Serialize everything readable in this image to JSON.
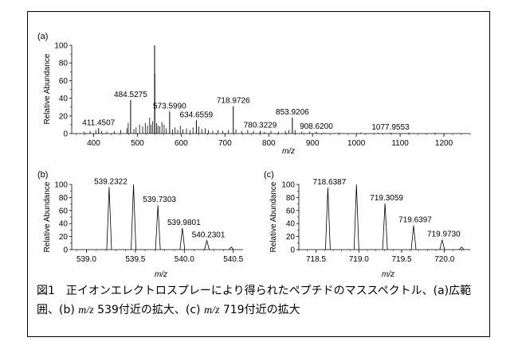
{
  "chart_data": [
    {
      "type": "line",
      "panel_label": "(a)",
      "ylabel": "Relative Abundance",
      "xlabel": "m/z",
      "xlim": [
        350,
        1260
      ],
      "ylim": [
        0,
        100
      ],
      "x_ticks": [
        400,
        500,
        600,
        700,
        800,
        900,
        1000,
        1100,
        1200
      ],
      "y_ticks": [
        0,
        20,
        40,
        60,
        80,
        100
      ],
      "peaks": [
        {
          "x": 411.4507,
          "y": 6,
          "label": "411.4507"
        },
        {
          "x": 484.5275,
          "y": 38,
          "label": "484.5275"
        },
        {
          "x": 539.2322,
          "y": 100,
          "label": ""
        },
        {
          "x": 539.7303,
          "y": 68,
          "label": ""
        },
        {
          "x": 573.599,
          "y": 25,
          "label": "573.5990"
        },
        {
          "x": 634.6559,
          "y": 15,
          "label": "634.6559"
        },
        {
          "x": 718.9726,
          "y": 31,
          "label": "718.9726"
        },
        {
          "x": 780.3229,
          "y": 3,
          "label": "780.3229"
        },
        {
          "x": 853.9206,
          "y": 18,
          "label": "853.9206"
        },
        {
          "x": 908.62,
          "y": 2,
          "label": "908.6200"
        },
        {
          "x": 1077.9553,
          "y": 1,
          "label": "1077.9553"
        }
      ],
      "minor_peaks": [
        {
          "x": 378,
          "y": 2
        },
        {
          "x": 392,
          "y": 3
        },
        {
          "x": 405,
          "y": 4
        },
        {
          "x": 418,
          "y": 3
        },
        {
          "x": 430,
          "y": 2
        },
        {
          "x": 447,
          "y": 3
        },
        {
          "x": 462,
          "y": 4
        },
        {
          "x": 476,
          "y": 6
        },
        {
          "x": 479,
          "y": 12
        },
        {
          "x": 492,
          "y": 5
        },
        {
          "x": 497,
          "y": 7
        },
        {
          "x": 505,
          "y": 10
        },
        {
          "x": 512,
          "y": 8
        },
        {
          "x": 518,
          "y": 12
        },
        {
          "x": 523,
          "y": 9
        },
        {
          "x": 528,
          "y": 18
        },
        {
          "x": 531,
          "y": 10
        },
        {
          "x": 535,
          "y": 14
        },
        {
          "x": 544,
          "y": 12
        },
        {
          "x": 547,
          "y": 9
        },
        {
          "x": 551,
          "y": 8
        },
        {
          "x": 556,
          "y": 13
        },
        {
          "x": 561,
          "y": 10
        },
        {
          "x": 566,
          "y": 6
        },
        {
          "x": 580,
          "y": 5
        },
        {
          "x": 586,
          "y": 7
        },
        {
          "x": 592,
          "y": 4
        },
        {
          "x": 598,
          "y": 9
        },
        {
          "x": 604,
          "y": 5
        },
        {
          "x": 612,
          "y": 6
        },
        {
          "x": 620,
          "y": 4
        },
        {
          "x": 627,
          "y": 7
        },
        {
          "x": 640,
          "y": 8
        },
        {
          "x": 647,
          "y": 5
        },
        {
          "x": 655,
          "y": 6
        },
        {
          "x": 662,
          "y": 4
        },
        {
          "x": 672,
          "y": 3
        },
        {
          "x": 684,
          "y": 4
        },
        {
          "x": 695,
          "y": 3
        },
        {
          "x": 708,
          "y": 4
        },
        {
          "x": 725,
          "y": 5
        },
        {
          "x": 738,
          "y": 3
        },
        {
          "x": 752,
          "y": 4
        },
        {
          "x": 765,
          "y": 3
        },
        {
          "x": 790,
          "y": 2
        },
        {
          "x": 805,
          "y": 3
        },
        {
          "x": 822,
          "y": 2
        },
        {
          "x": 838,
          "y": 3
        },
        {
          "x": 846,
          "y": 4
        },
        {
          "x": 860,
          "y": 4
        },
        {
          "x": 875,
          "y": 2
        },
        {
          "x": 893,
          "y": 2
        },
        {
          "x": 925,
          "y": 1
        },
        {
          "x": 960,
          "y": 1
        },
        {
          "x": 1010,
          "y": 1
        },
        {
          "x": 1050,
          "y": 1
        },
        {
          "x": 1120,
          "y": 1
        },
        {
          "x": 1180,
          "y": 1
        }
      ]
    },
    {
      "type": "line",
      "panel_label": "(b)",
      "ylabel": "Relative Abundance",
      "xlabel": "m/z",
      "xlim": [
        538.85,
        540.6
      ],
      "ylim": [
        0,
        100
      ],
      "x_ticks": [
        539.0,
        539.5,
        540.0,
        540.5
      ],
      "y_ticks": [
        0,
        20,
        40,
        60,
        80,
        100
      ],
      "peaks": [
        {
          "x": 539.2322,
          "y": 96,
          "label": "539.2322"
        },
        {
          "x": 539.4812,
          "y": 100,
          "label": ""
        },
        {
          "x": 539.7303,
          "y": 68,
          "label": "539.7303"
        },
        {
          "x": 539.9801,
          "y": 33,
          "label": "539.9801"
        },
        {
          "x": 540.2301,
          "y": 14,
          "label": "540.2301"
        },
        {
          "x": 540.48,
          "y": 4,
          "label": ""
        }
      ]
    },
    {
      "type": "line",
      "panel_label": "(c)",
      "ylabel": "Relative Abundance",
      "xlabel": "m/z",
      "xlim": [
        718.3,
        720.3
      ],
      "ylim": [
        0,
        100
      ],
      "x_ticks": [
        718.5,
        719.0,
        719.5,
        720.0
      ],
      "y_ticks": [
        0,
        20,
        40,
        60,
        80,
        100
      ],
      "peaks": [
        {
          "x": 718.6387,
          "y": 95,
          "label": "718.6387"
        },
        {
          "x": 718.9726,
          "y": 100,
          "label": ""
        },
        {
          "x": 719.3059,
          "y": 71,
          "label": "719.3059"
        },
        {
          "x": 719.6397,
          "y": 37,
          "label": "719.6397"
        },
        {
          "x": 719.973,
          "y": 15,
          "label": "719.9730"
        },
        {
          "x": 720.2,
          "y": 4,
          "label": ""
        }
      ]
    }
  ],
  "caption": {
    "line1": "図1　正イオンエレクトロスプレーにより得られたペプチドのマススペクトル、(a)広範",
    "line2_a": "囲、(b) ",
    "line2_mz1": "m/z",
    "line2_b": " 539付近の拡大、(c) ",
    "line2_mz2": "m/z",
    "line2_c": " 719付近の拡大"
  }
}
